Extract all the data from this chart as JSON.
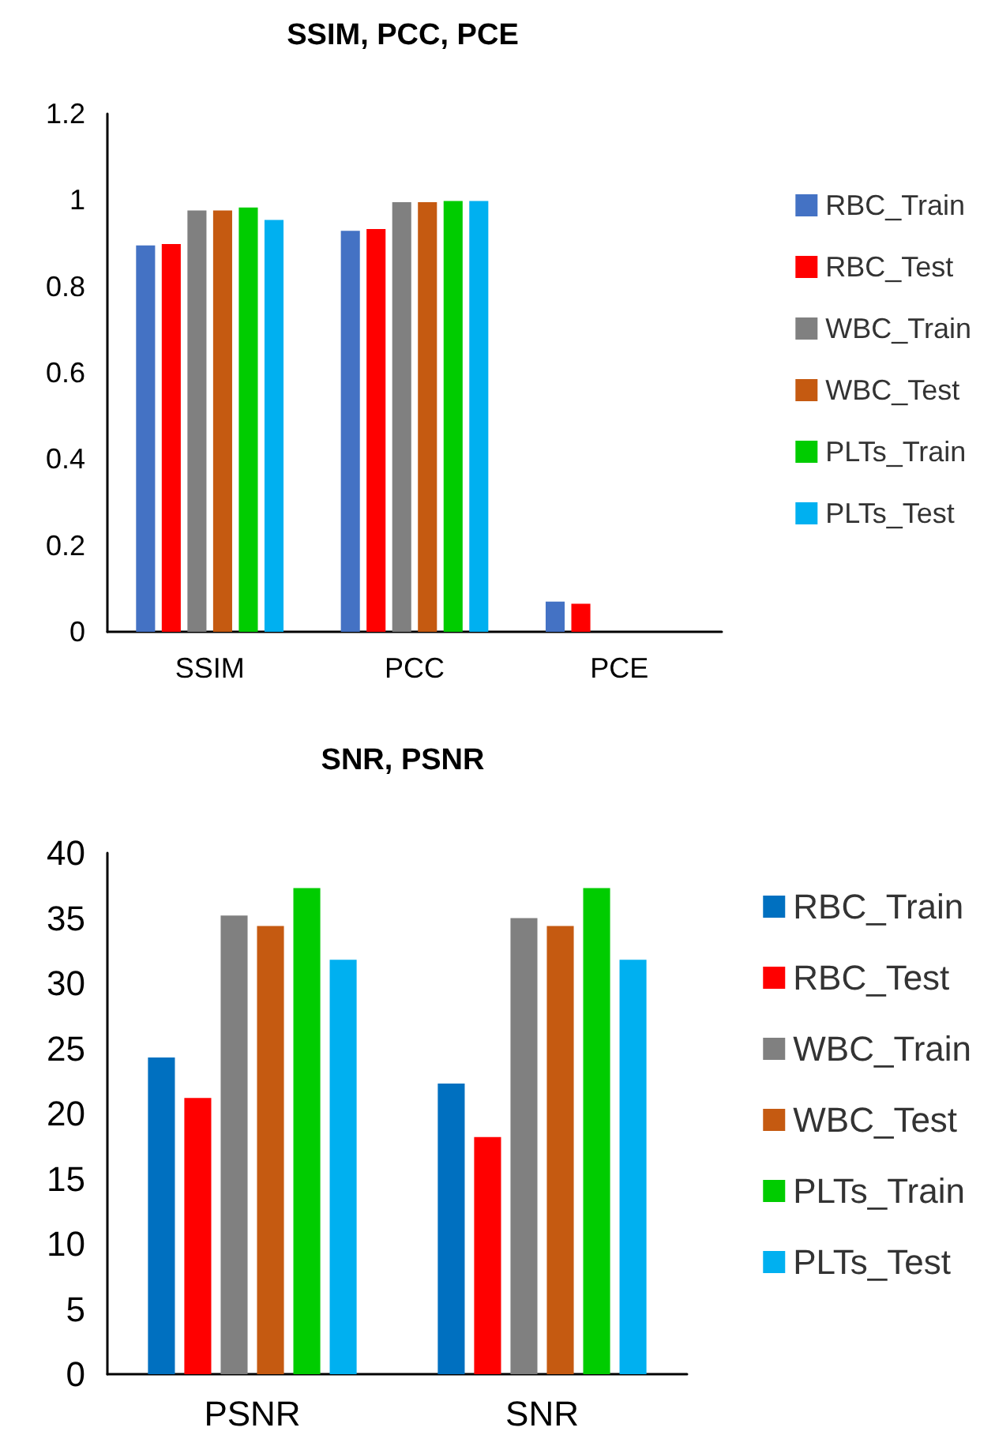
{
  "chart_data": [
    {
      "type": "bar",
      "title": "SSIM, PCC, PCE",
      "categories": [
        "SSIM",
        "PCC",
        "PCE"
      ],
      "ylim": [
        0,
        1.2
      ],
      "yticks": [
        0,
        0.2,
        0.4,
        0.6,
        0.8,
        1,
        1.2
      ],
      "grid": false,
      "legend": "right",
      "series": [
        {
          "name": "RBC_Train",
          "color": "#4472c4",
          "values": [
            0.895,
            0.929,
            0.07
          ]
        },
        {
          "name": "RBC_Test",
          "color": "#ff0000",
          "values": [
            0.898,
            0.933,
            0.065
          ]
        },
        {
          "name": "WBC_Train",
          "color": "#808080",
          "values": [
            0.976,
            0.995,
            0
          ]
        },
        {
          "name": "WBC_Test",
          "color": "#c55a11",
          "values": [
            0.976,
            0.995,
            0
          ]
        },
        {
          "name": "PLTs_Train",
          "color": "#00cc00",
          "values": [
            0.983,
            0.998,
            0
          ]
        },
        {
          "name": "PLTs_Test",
          "color": "#00b0f0",
          "values": [
            0.954,
            0.998,
            0
          ]
        }
      ]
    },
    {
      "type": "bar",
      "title": "SNR, PSNR",
      "categories": [
        "PSNR",
        "SNR"
      ],
      "ylim": [
        0,
        40
      ],
      "yticks": [
        0,
        5,
        10,
        15,
        20,
        25,
        30,
        35,
        40
      ],
      "grid": false,
      "legend": "right",
      "series": [
        {
          "name": "RBC_Train",
          "color": "#0070c0",
          "values": [
            24.3,
            22.3
          ]
        },
        {
          "name": "RBC_Test",
          "color": "#ff0000",
          "values": [
            21.2,
            18.2
          ]
        },
        {
          "name": "WBC_Train",
          "color": "#808080",
          "values": [
            35.2,
            35.0
          ]
        },
        {
          "name": "WBC_Test",
          "color": "#c55a11",
          "values": [
            34.4,
            34.4
          ]
        },
        {
          "name": "PLTs_Train",
          "color": "#00cc00",
          "values": [
            37.3,
            37.3
          ]
        },
        {
          "name": "PLTs_Test",
          "color": "#00b0f0",
          "values": [
            31.8,
            31.8
          ]
        }
      ]
    }
  ]
}
